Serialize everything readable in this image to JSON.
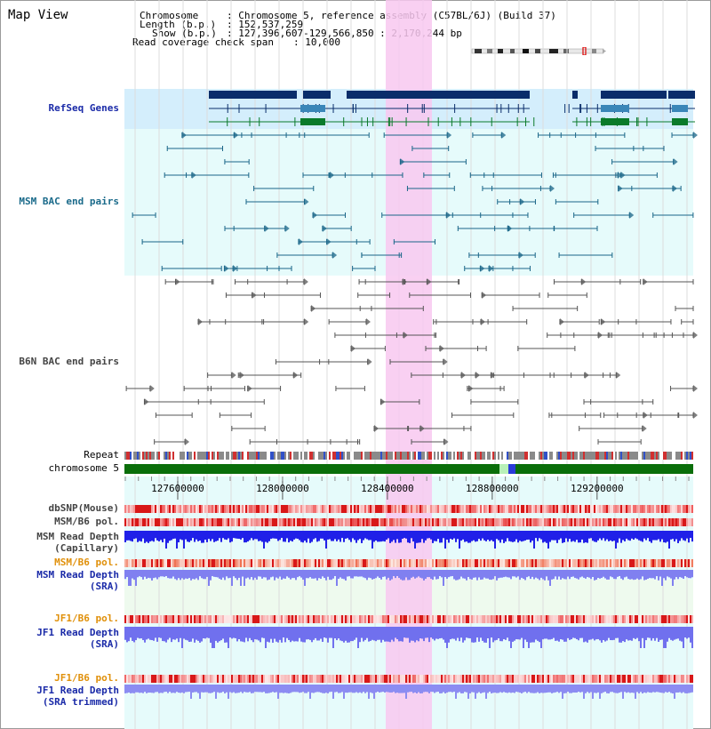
{
  "view_title": "Map View",
  "info": {
    "chromosome_key": "Chromosome",
    "chromosome_val": ": Chromosome 5, reference assembly (C57BL/6J) (Build 37)",
    "length_key": "Length (b.p.)",
    "length_val": ": 152,537,259",
    "show_key": "Show (b.p.)",
    "show_val": ": 127,396,607-129,566,850 : 2,170,244 bp",
    "coverage_key": "Read coverage check span",
    "coverage_val": ": 10,000"
  },
  "tracks": {
    "refseq": "RefSeq Genes",
    "msm_bac": "MSM BAC end pairs",
    "b6n_bac": "B6N BAC end pairs",
    "repeat": "Repeat",
    "chromosome": "chromosome 5",
    "dbsnp": "dbSNP(Mouse)",
    "msm_b6_pol": "MSM/B6 pol.",
    "msm_depth_cap_1": "MSM Read Depth",
    "msm_depth_cap_2": "(Capillary)",
    "msm_b6_pol_sra": "MSM/B6 pol.",
    "msm_depth_sra_1": "MSM Read Depth",
    "msm_depth_sra_2": "(SRA)",
    "jf1_b6_pol": "JF1/B6 pol.",
    "jf1_depth_1": "JF1 Read Depth",
    "jf1_depth_2": "(SRA)",
    "jf1_b6_pol_2": "JF1/B6 pol.",
    "jf1_trim_1": "JF1 Read Depth",
    "jf1_trim_2": "(SRA trimmed)"
  },
  "axis": {
    "ticks": [
      {
        "label": "127600000",
        "value": 127600000
      },
      {
        "label": "128000000",
        "value": 128000000
      },
      {
        "label": "128400000",
        "value": 128400000
      },
      {
        "label": "128800000",
        "value": 128800000
      },
      {
        "label": "129200000",
        "value": 129200000
      }
    ]
  },
  "colors": {
    "highlight": "#f8c8f0",
    "refseq_bg": "#d4eefc",
    "track_bg": "#e6fbfb",
    "gene_dark": "#0a2d6a",
    "gene_mid": "#3a86b8",
    "gene_green": "#0a7a2a",
    "bac_msm": "#1a6688",
    "bac_b6n": "#555555",
    "chrom": "#0a6e0a",
    "depth_cap": "#2020e8",
    "depth_sra": "#8080f0",
    "pol_red": "#ee5555",
    "label_blue": "#1a2aa8",
    "label_teal": "#1a6a8a",
    "label_orange": "#e0900a"
  }
}
